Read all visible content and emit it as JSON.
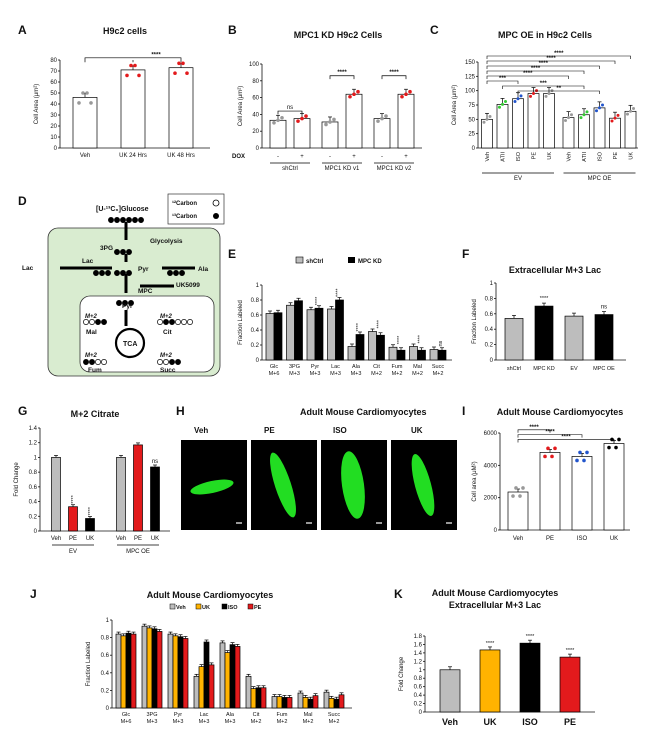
{
  "panel_letters": [
    "A",
    "B",
    "C",
    "D",
    "E",
    "F",
    "G",
    "H",
    "I",
    "J",
    "K"
  ],
  "colors": {
    "red": "#e31a1c",
    "green": "#33cc33",
    "blue": "#2255cc",
    "grey": "#bdbdbd",
    "black": "#000000",
    "orange": "#ffb300",
    "cell_green": "#22dd22",
    "cytoplasm": "#d9ecd0"
  },
  "chart_data": [
    {
      "panel": "A",
      "type": "bar",
      "title": "H9c2 cells",
      "ylabel": "Cell Area (μm²)",
      "ylim": [
        0,
        80
      ],
      "yticks": [
        0,
        10,
        20,
        30,
        40,
        50,
        60,
        70,
        80
      ],
      "categories": [
        "Veh",
        "UK 24 Hrs",
        "UK 48 Hrs"
      ],
      "values": [
        46,
        71,
        73
      ],
      "significance": [
        {
          "from": "Veh",
          "to": "UK 48 Hrs",
          "label": "****"
        }
      ]
    },
    {
      "panel": "B",
      "type": "bar",
      "title": "MPC1 KD H9c2 Cells",
      "ylabel": "Cell Area (μm²)",
      "ylim": [
        0,
        100
      ],
      "yticks": [
        0,
        20,
        40,
        60,
        80,
        100
      ],
      "row_label": "DOX",
      "dox": [
        "-",
        "+",
        "-",
        "+",
        "-",
        "+"
      ],
      "groups": [
        "shCtrl",
        "MPC1 KD v1",
        "MPC1 KD v2"
      ],
      "values": [
        33,
        35,
        31,
        64,
        35,
        64
      ],
      "significance": [
        {
          "group": "shCtrl",
          "label": "ns"
        },
        {
          "group": "MPC1 KD v1",
          "label": "****"
        },
        {
          "group": "MPC1 KD v2",
          "label": "****"
        }
      ]
    },
    {
      "panel": "C",
      "type": "bar",
      "title": "MPC OE in H9c2 Cells",
      "ylabel": "Cell Area (μm²)",
      "ylim": [
        0,
        150
      ],
      "yticks": [
        0,
        25,
        50,
        75,
        100,
        125,
        150
      ],
      "categories": [
        "Veh",
        "ATII",
        "ISO",
        "PE",
        "UK",
        "Veh",
        "ATII",
        "ISO",
        "PE",
        "UK"
      ],
      "groups": [
        "EV",
        "MPC OE"
      ],
      "values": [
        50,
        76,
        86,
        95,
        95,
        53,
        58,
        70,
        52,
        64
      ],
      "significance_labels": [
        "****",
        "****",
        "****",
        "****",
        "****",
        "***",
        "***",
        "**"
      ]
    },
    {
      "panel": "E",
      "type": "bar",
      "ylabel": "Fraction Labeled",
      "ylim": [
        0,
        1
      ],
      "yticks": [
        0,
        0.2,
        0.4,
        0.6,
        0.8,
        1
      ],
      "categories": [
        "Glc M+6",
        "3PG M+3",
        "Pyr M+3",
        "Lac M+3",
        "Ala M+3",
        "Cit M+2",
        "Fum M+2",
        "Mal M+2",
        "Succ M+2"
      ],
      "series": [
        {
          "name": "shCtrl",
          "values": [
            0.62,
            0.73,
            0.67,
            0.68,
            0.18,
            0.38,
            0.17,
            0.18,
            0.14
          ]
        },
        {
          "name": "MPC KD",
          "values": [
            0.63,
            0.79,
            0.69,
            0.8,
            0.34,
            0.33,
            0.13,
            0.13,
            0.13
          ]
        }
      ],
      "significance": [
        "",
        "",
        "****",
        "****",
        "****",
        "****",
        "****",
        "****",
        "ns"
      ]
    },
    {
      "panel": "F",
      "type": "bar",
      "title": "Extracellular M+3 Lac",
      "ylabel": "Fraction Labeled",
      "ylim": [
        0,
        1
      ],
      "yticks": [
        0,
        0.2,
        0.4,
        0.6,
        0.8,
        1
      ],
      "categories": [
        "shCtrl",
        "MPC KD",
        "EV",
        "MPC OE"
      ],
      "values": [
        0.54,
        0.7,
        0.57,
        0.59
      ],
      "significance": [
        "",
        "****",
        "",
        "ns"
      ]
    },
    {
      "panel": "G",
      "type": "bar",
      "title": "M+2 Citrate",
      "ylabel": "Fold Change",
      "ylim": [
        0,
        1.4
      ],
      "yticks": [
        0,
        0.2,
        0.4,
        0.6,
        0.8,
        1,
        1.2,
        1.4
      ],
      "categories": [
        "Veh",
        "PE",
        "UK",
        "Veh",
        "PE",
        "UK"
      ],
      "groups": [
        "EV",
        "MPC OE"
      ],
      "values": [
        1.0,
        0.33,
        0.17,
        1.0,
        1.17,
        0.87
      ],
      "significance": [
        "",
        "****",
        "****",
        "",
        "",
        "ns"
      ]
    },
    {
      "panel": "I",
      "type": "bar",
      "title": "Adult Mouse Cardiomyocytes",
      "ylabel": "Cell area (μM²)",
      "ylim": [
        0,
        6000
      ],
      "yticks": [
        0,
        2000,
        4000,
        6000
      ],
      "categories": [
        "Veh",
        "PE",
        "ISO",
        "UK"
      ],
      "values": [
        2350,
        4800,
        4550,
        5350
      ],
      "significance_labels": [
        "****",
        "****",
        "****"
      ]
    },
    {
      "panel": "J",
      "type": "bar",
      "title": "Adult Mouse Cardiomyocytes",
      "ylabel": "Fraction Labeled",
      "ylim": [
        0,
        1
      ],
      "yticks": [
        0,
        0.2,
        0.4,
        0.6,
        0.8,
        1
      ],
      "categories": [
        "Glc M+6",
        "3PG M+3",
        "Pyr M+3",
        "Lac M+3",
        "Ala M+3",
        "Cit M+2",
        "Fum M+2",
        "Mal M+2",
        "Succ M+2"
      ],
      "series": [
        {
          "name": "Veh",
          "values": [
            0.84,
            0.93,
            0.84,
            0.36,
            0.74,
            0.36,
            0.13,
            0.17,
            0.18
          ]
        },
        {
          "name": "UK",
          "values": [
            0.82,
            0.91,
            0.82,
            0.47,
            0.63,
            0.22,
            0.13,
            0.12,
            0.11
          ]
        },
        {
          "name": "ISO",
          "values": [
            0.85,
            0.9,
            0.81,
            0.75,
            0.72,
            0.23,
            0.12,
            0.1,
            0.1
          ]
        },
        {
          "name": "PE",
          "values": [
            0.84,
            0.87,
            0.79,
            0.49,
            0.7,
            0.23,
            0.12,
            0.14,
            0.15
          ]
        }
      ]
    },
    {
      "panel": "K",
      "type": "bar",
      "title": "Adult Mouse Cardiomyocytes",
      "subtitle": "Extracellular M+3 Lac",
      "ylabel": "Fold Change",
      "ylim": [
        0,
        1.8
      ],
      "yticks": [
        0,
        0.2,
        0.4,
        0.6,
        0.8,
        1,
        1.2,
        1.4,
        1.6,
        1.8
      ],
      "categories": [
        "Veh",
        "UK",
        "ISO",
        "PE"
      ],
      "values": [
        1.0,
        1.47,
        1.63,
        1.3
      ],
      "significance": [
        "",
        "****",
        "****",
        "****"
      ]
    }
  ],
  "diagram_D": {
    "glucose_label": "[U-¹³C₆]Glucose",
    "legend_12c": "¹²Carbon",
    "legend_13c": "¹³Carbon",
    "labels": [
      "Glycolysis",
      "3PG",
      "Lac",
      "Lac",
      "Pyr",
      "Ala",
      "Ala",
      "MPC",
      "UK5099",
      "Pyr",
      "TCA",
      "Mal",
      "Cit",
      "Fum",
      "Succ"
    ],
    "mplus2": "M+2"
  },
  "panel_H": {
    "title": "Adult Mouse Cardiomyocytes",
    "images": [
      "Veh",
      "PE",
      "ISO",
      "UK"
    ]
  }
}
